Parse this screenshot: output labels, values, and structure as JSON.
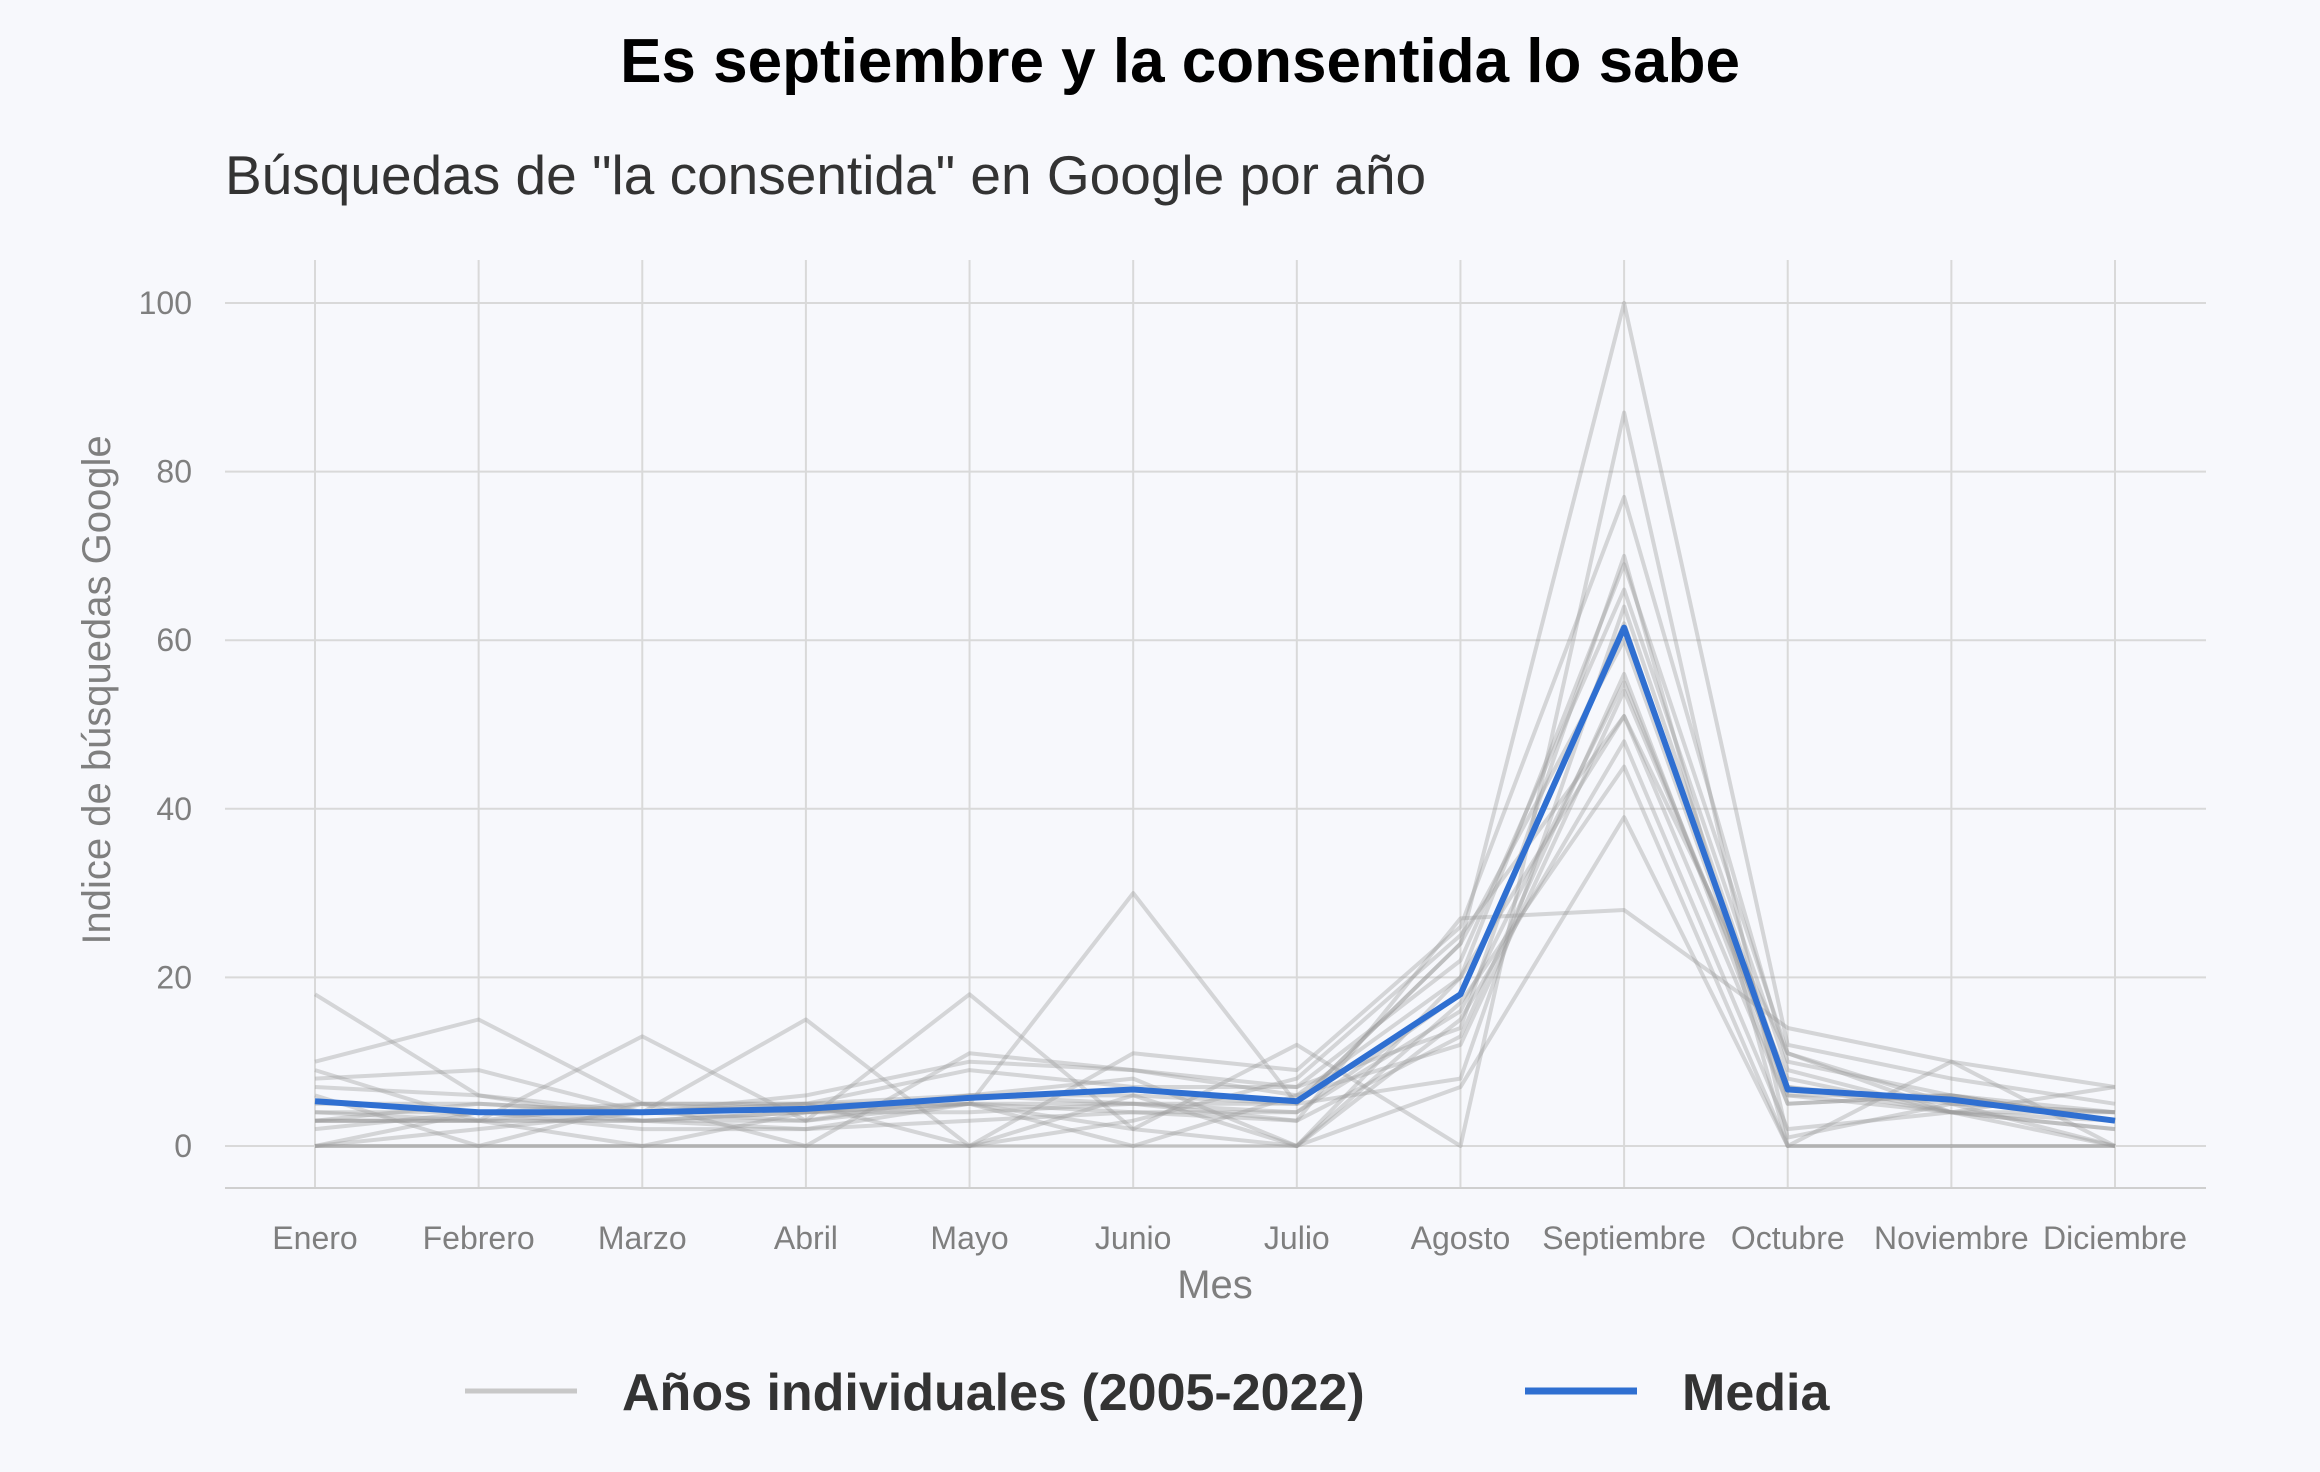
{
  "chart_data": {
    "type": "line",
    "title": "Es septiembre y la consentida lo sabe",
    "subtitle": "Búsquedas de \"la consentida\" en Google por año",
    "xlabel": "Mes",
    "ylabel": "Indice de búsquedas Google",
    "categories": [
      "Enero",
      "Febrero",
      "Marzo",
      "Abril",
      "Mayo",
      "Junio",
      "Julio",
      "Agosto",
      "Septiembre",
      "Octubre",
      "Noviembre",
      "Diciembre"
    ],
    "ylim": [
      -5,
      105
    ],
    "yticks": [
      0,
      20,
      40,
      60,
      80,
      100
    ],
    "grid": true,
    "legend": {
      "placement": "bottom",
      "items": [
        {
          "label": "Años individuales (2005-2022)",
          "color": "#c8c8c8"
        },
        {
          "label": "Media",
          "color": "#2f6fd1"
        }
      ]
    },
    "individual_color": "#9a9a9a",
    "mean_color": "#2f6fd1",
    "individual_series": [
      {
        "values": [
          18,
          6,
          3,
          2,
          3,
          4,
          3,
          27,
          28,
          14,
          10,
          7
        ]
      },
      {
        "values": [
          10,
          15,
          5,
          4,
          5,
          30,
          5,
          24,
          100,
          12,
          8,
          5
        ]
      },
      {
        "values": [
          9,
          3,
          13,
          3,
          18,
          2,
          12,
          0,
          87,
          1,
          5,
          4
        ]
      },
      {
        "values": [
          8,
          9,
          4,
          15,
          0,
          11,
          9,
          26,
          77,
          10,
          6,
          3
        ]
      },
      {
        "values": [
          6,
          0,
          5,
          0,
          11,
          9,
          7,
          14,
          70,
          0,
          10,
          0
        ]
      },
      {
        "values": [
          5,
          5,
          4,
          6,
          10,
          9,
          6,
          20,
          69,
          11,
          4,
          7
        ]
      },
      {
        "values": [
          4,
          4,
          5,
          5,
          9,
          7,
          7,
          22,
          66,
          9,
          4,
          3
        ]
      },
      {
        "values": [
          3,
          3,
          3,
          4,
          6,
          6,
          5,
          8,
          64,
          7,
          5,
          4
        ]
      },
      {
        "values": [
          3,
          5,
          4,
          3,
          5,
          5,
          4,
          18,
          62,
          6,
          6,
          4
        ]
      },
      {
        "values": [
          3,
          3,
          0,
          4,
          4,
          5,
          3,
          13,
          56,
          5,
          6,
          3
        ]
      },
      {
        "values": [
          0,
          2,
          4,
          5,
          5,
          4,
          4,
          16,
          55,
          7,
          4,
          0
        ]
      },
      {
        "values": [
          0,
          4,
          2,
          2,
          5,
          0,
          6,
          12,
          54,
          8,
          4,
          2
        ]
      },
      {
        "values": [
          2,
          4,
          3,
          3,
          6,
          8,
          0,
          20,
          51,
          11,
          5,
          0
        ]
      },
      {
        "values": [
          4,
          3,
          5,
          5,
          0,
          3,
          8,
          25,
          51,
          5,
          6,
          3
        ]
      },
      {
        "values": [
          0,
          0,
          0,
          0,
          0,
          6,
          0,
          17,
          45,
          0,
          0,
          0
        ]
      },
      {
        "values": [
          0,
          0,
          0,
          0,
          0,
          0,
          0,
          7,
          39,
          0,
          0,
          0
        ]
      },
      {
        "values": [
          7,
          6,
          4,
          5,
          6,
          5,
          5,
          24,
          60,
          6,
          4,
          4
        ]
      },
      {
        "values": [
          3,
          3,
          3,
          4,
          5,
          2,
          0,
          15,
          48,
          2,
          4,
          2
        ]
      }
    ],
    "series": [
      {
        "name": "Media",
        "values": [
          5.3,
          4.0,
          4.0,
          4.4,
          5.7,
          6.7,
          5.3,
          18.0,
          61.5,
          6.7,
          5.5,
          3.0
        ]
      }
    ]
  }
}
